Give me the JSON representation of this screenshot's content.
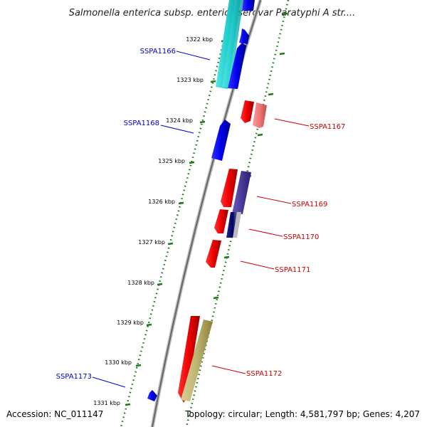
{
  "title": "Salmonella enterica subsp. enterica serovar Paratyphi A str....",
  "footer": {
    "accession": "Accession: NC_011147",
    "topology": "Topology: circular; Length: 4,581,797 bp; Genes: 4,207"
  },
  "ticks": [
    "1322 kbp",
    "1323 kbp",
    "1324 kbp",
    "1325 kbp",
    "1326 kbp",
    "1327 kbp",
    "1328 kbp",
    "1329 kbp",
    "1330 kbp",
    "1331 kbp"
  ],
  "genes": [
    {
      "name": "SSPA1166",
      "color": "#0000cc"
    },
    {
      "name": "SSPA1167",
      "color": "#cc0000"
    },
    {
      "name": "SSPA1168",
      "color": "#0000cc"
    },
    {
      "name": "SSPA1169",
      "color": "#cc0000"
    },
    {
      "name": "SSPA1170",
      "color": "#cc0000"
    },
    {
      "name": "SSPA1171",
      "color": "#cc0000"
    },
    {
      "name": "SSPA1172",
      "color": "#cc0000"
    },
    {
      "name": "SSPA1173",
      "color": "#0000cc"
    }
  ],
  "colors": {
    "backbone": "#777777",
    "tick_track": "#1a7a1a",
    "forward_strand": "#ee0000",
    "reverse_strand": "#0000ee",
    "cyan_feature": "#22cccc",
    "navy_feature": "#4a3a9a",
    "olive_feature": "#bdb46e",
    "pink_feature": "#ee7777"
  }
}
